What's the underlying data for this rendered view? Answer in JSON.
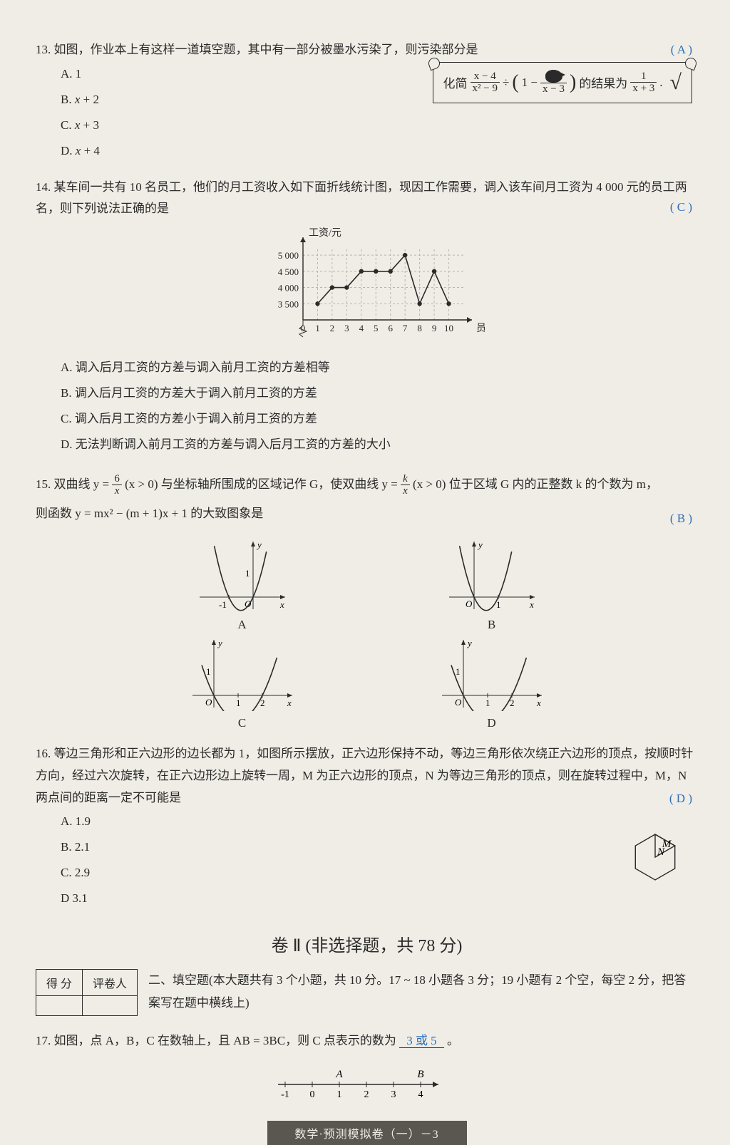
{
  "q13": {
    "num": "13.",
    "text": "如图，作业本上有这样一道填空题，其中有一部分被墨水污染了，则污染部分是",
    "answer": "(   A   )",
    "options": {
      "A": "A. 1",
      "B": "B. x + 2",
      "C": "C. x + 3",
      "D": "D. x + 4"
    },
    "scroll": {
      "pre": "化简",
      "frac1_num": "x − 4",
      "frac1_den": "x² − 9",
      "mid1": " ÷ ",
      "paren_pre": "(1 − ",
      "frac2_den": "x − 3",
      "paren_post": ")",
      "mid2": "的结果为",
      "frac3_num": "1",
      "frac3_den": "x + 3",
      "dot": "."
    }
  },
  "q14": {
    "num": "14.",
    "text": "某车间一共有 10 名员工，他们的月工资收入如下面折线统计图，现因工作需要，调入该车间月工资为 4 000 元的员工两名，则下列说法正确的是",
    "answer": "(   C   )",
    "options": {
      "A": "A. 调入后月工资的方差与调入前月工资的方差相等",
      "B": "B. 调入后月工资的方差大于调入前月工资的方差",
      "C": "C. 调入后月工资的方差小于调入前月工资的方差",
      "D": "D. 无法判断调入前月工资的方差与调入后月工资的方差的大小"
    },
    "chart": {
      "y_label": "工资/元",
      "x_label": "员工",
      "y_ticks": [
        3500,
        4000,
        4500,
        5000
      ],
      "x_ticks": [
        0,
        1,
        2,
        3,
        4,
        5,
        6,
        7,
        8,
        9,
        10
      ],
      "values": [
        3500,
        4000,
        4000,
        4500,
        4500,
        4500,
        5000,
        3500,
        4500,
        3500
      ],
      "line_color": "#2a2a2a",
      "grid_color": "#b8b5ad",
      "background_color": "#f0ede6",
      "ylim": [
        3000,
        5200
      ],
      "zigzag": true
    }
  },
  "q15": {
    "num": "15.",
    "text1": "双曲线 y = ",
    "frac1_num": "6",
    "frac1_den": "x",
    "text2": " (x > 0) 与坐标轴所围成的区域记作 G，使双曲线 y = ",
    "frac2_num": "k",
    "frac2_den": "x",
    "text3": " (x > 0) 位于区域 G 内的正整数 k 的个数为 m，",
    "text4": "则函数 y = mx² − (m + 1)x + 1 的大致图象是",
    "answer": "(   B   )",
    "graph_labels": {
      "A": "A",
      "B": "B",
      "C": "C",
      "D": "D"
    },
    "graphs": {
      "A": {
        "type": "parabola",
        "a": 1,
        "vertex_x": -0.5,
        "roots": [
          -1,
          0
        ],
        "y_intercept": 1
      },
      "B": {
        "type": "parabola",
        "a": 1,
        "vertex_x": 0.5,
        "roots": [
          0,
          1
        ],
        "y_intercept": 1
      },
      "C": {
        "type": "parabola",
        "a": 0.5,
        "vertex_x": 1,
        "roots": [
          0,
          2
        ],
        "y_intercept": 1
      },
      "D": {
        "type": "parabola",
        "a": 0.5,
        "vertex_x": 1,
        "roots": [
          0,
          2
        ],
        "y_intercept": 1
      },
      "axis_color": "#2a2a2a"
    }
  },
  "q16": {
    "num": "16.",
    "text": "等边三角形和正六边形的边长都为 1，如图所示摆放，正六边形保持不动，等边三角形依次绕正六边形的顶点，按顺时针方向，经过六次旋转，在正六边形边上旋转一周，M 为正六边形的顶点，N 为等边三角形的顶点，则在旋转过程中，M，N 两点间的距离一定不可能是",
    "answer": "(   D   )",
    "options": {
      "A": "A. 1.9",
      "B": "B. 2.1",
      "C": "C. 2.9",
      "D": "D  3.1"
    },
    "figure": {
      "hexagon_side": 1,
      "triangle_side": 1,
      "labels": {
        "M": "M",
        "N": "N"
      },
      "stroke": "#2a2a2a"
    }
  },
  "section2": {
    "title": "卷 Ⅱ (非选择题，共 78 分)",
    "score_table": {
      "headers": [
        "得  分",
        "评卷人"
      ]
    },
    "heading": "二、填空题(本大题共有 3 个小题，共 10 分。17 ~ 18 小题各 3 分；19 小题有 2 个空，每空 2 分，把答案写在题中横线上)"
  },
  "q17": {
    "num": "17.",
    "text1": "如图，点 A，B，C 在数轴上，且 AB = 3BC，则 C 点表示的数为",
    "answer": "3 或 5",
    "text2": "。",
    "number_line": {
      "ticks": [
        -1,
        0,
        1,
        2,
        3,
        4
      ],
      "labels": {
        "A": {
          "pos": 1,
          "text": "A"
        },
        "B": {
          "pos": 4,
          "text": "B"
        }
      },
      "axis_color": "#2a2a2a"
    }
  },
  "footer": "数学·预测模拟卷（一）－3"
}
